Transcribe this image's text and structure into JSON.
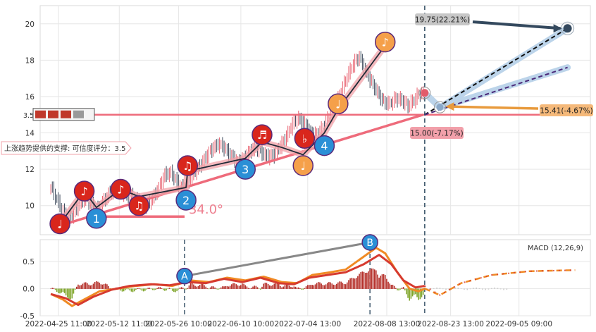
{
  "chart_data": [
    {
      "type": "candlestick",
      "panel": "price",
      "ylim": [
        8.4,
        21.0
      ],
      "yticks": [
        10,
        12,
        14,
        16,
        18,
        20
      ],
      "grid": true,
      "colors": {
        "up": "#e8606f",
        "down": "#3e4a5c",
        "support": "#f07c8a",
        "target": "#34495e",
        "note_red": "#d9261c",
        "note_orange": "#f5a04a",
        "wave_blue": "#2a8fd6"
      },
      "close_series": [
        [
          0,
          11.0
        ],
        [
          3,
          10.5
        ],
        [
          7,
          9.8
        ],
        [
          11,
          9.2
        ],
        [
          15,
          9.6
        ],
        [
          19,
          10.1
        ],
        [
          23,
          10.5
        ],
        [
          27,
          10.0
        ],
        [
          31,
          9.8
        ],
        [
          35,
          10.3
        ],
        [
          39,
          10.7
        ],
        [
          43,
          11.0
        ],
        [
          47,
          10.7
        ],
        [
          51,
          10.6
        ],
        [
          55,
          10.4
        ],
        [
          59,
          10.1
        ],
        [
          63,
          10.0
        ],
        [
          67,
          10.4
        ],
        [
          71,
          11.0
        ],
        [
          75,
          11.7
        ],
        [
          79,
          11.8
        ],
        [
          83,
          11.3
        ],
        [
          87,
          10.9
        ],
        [
          91,
          11.4
        ],
        [
          95,
          11.9
        ],
        [
          99,
          12.3
        ],
        [
          103,
          12.8
        ],
        [
          107,
          13.2
        ],
        [
          111,
          13.4
        ],
        [
          115,
          13.1
        ],
        [
          119,
          12.7
        ],
        [
          123,
          12.4
        ],
        [
          127,
          12.6
        ],
        [
          131,
          13.0
        ],
        [
          135,
          13.2
        ],
        [
          139,
          12.9
        ],
        [
          143,
          12.7
        ],
        [
          147,
          12.8
        ],
        [
          151,
          13.3
        ],
        [
          155,
          13.8
        ],
        [
          159,
          14.5
        ],
        [
          163,
          14.8
        ],
        [
          167,
          14.5
        ],
        [
          171,
          14.0
        ],
        [
          175,
          13.9
        ],
        [
          179,
          14.3
        ],
        [
          183,
          14.9
        ],
        [
          187,
          15.4
        ],
        [
          191,
          16.3
        ],
        [
          195,
          17.1
        ],
        [
          199,
          17.8
        ],
        [
          203,
          18.2
        ],
        [
          207,
          17.4
        ],
        [
          211,
          16.8
        ],
        [
          215,
          16.2
        ],
        [
          219,
          15.7
        ],
        [
          223,
          15.6
        ],
        [
          227,
          15.9
        ],
        [
          231,
          15.8
        ],
        [
          235,
          15.5
        ],
        [
          239,
          15.8
        ],
        [
          243,
          16.2
        ],
        [
          245,
          16.1
        ]
      ],
      "support_line": {
        "level": 15.0,
        "label": "3.5"
      },
      "rising_trend": [
        [
          6,
          8.9
        ],
        [
          245,
          15.0
        ]
      ],
      "targets": [
        {
          "name": "up",
          "label": "19.75(22.21%)",
          "value": 19.75
        },
        {
          "name": "mid",
          "label": "15.41(-4.67%)",
          "value": 15.41
        },
        {
          "name": "down",
          "label": "15.00(-7.17%)",
          "value": 15.0
        }
      ],
      "waves": [
        {
          "label": "1",
          "bar": 30,
          "value": 9.3
        },
        {
          "label": "2",
          "bar": 89,
          "value": 10.3
        },
        {
          "label": "3",
          "bar": 128,
          "value": 12.0
        },
        {
          "label": "4",
          "bar": 180,
          "value": 13.3
        }
      ],
      "notes": [
        {
          "glyph": "♩",
          "bar": 6,
          "value": 9.0,
          "color": "red"
        },
        {
          "glyph": "♪",
          "bar": 22,
          "value": 10.8,
          "color": "red"
        },
        {
          "glyph": "♪",
          "bar": 46,
          "value": 10.9,
          "color": "red"
        },
        {
          "glyph": "♫",
          "bar": 58,
          "value": 10.0,
          "color": "red"
        },
        {
          "glyph": "♫",
          "bar": 90,
          "value": 12.2,
          "color": "red"
        },
        {
          "glyph": "♬",
          "bar": 139,
          "value": 13.9,
          "color": "red"
        },
        {
          "glyph": "♭",
          "bar": 167,
          "value": 13.7,
          "color": "red"
        },
        {
          "glyph": "♩",
          "bar": 166,
          "value": 12.2,
          "color": "orange"
        },
        {
          "glyph": "♩",
          "bar": 189,
          "value": 15.6,
          "color": "orange"
        },
        {
          "glyph": "♪",
          "bar": 220,
          "value": 19.0,
          "color": "orange"
        }
      ],
      "angle_label": "34.0°",
      "support_tag": "上涨趋势提供的支撑: 可信度评分：3.5"
    },
    {
      "type": "macd",
      "panel": "indicator",
      "legend": "MACD (12,26,9)",
      "ylim": [
        -0.5,
        0.9
      ],
      "yticks": [
        -0.5,
        0.0,
        0.5
      ],
      "grid": true,
      "dif": [
        [
          0,
          -0.1
        ],
        [
          8,
          -0.2
        ],
        [
          14,
          -0.32
        ],
        [
          22,
          -0.2
        ],
        [
          32,
          -0.05
        ],
        [
          44,
          0.0
        ],
        [
          56,
          0.05
        ],
        [
          68,
          0.08
        ],
        [
          80,
          0.05
        ],
        [
          92,
          0.15
        ],
        [
          104,
          0.12
        ],
        [
          116,
          0.2
        ],
        [
          128,
          0.15
        ],
        [
          140,
          0.22
        ],
        [
          152,
          0.12
        ],
        [
          162,
          0.1
        ],
        [
          172,
          0.25
        ],
        [
          184,
          0.3
        ],
        [
          194,
          0.35
        ],
        [
          204,
          0.55
        ],
        [
          214,
          0.75
        ],
        [
          220,
          0.65
        ],
        [
          228,
          0.3
        ],
        [
          236,
          0.0
        ],
        [
          242,
          -0.05
        ],
        [
          246,
          0.0
        ]
      ],
      "dea": [
        [
          0,
          -0.1
        ],
        [
          10,
          -0.18
        ],
        [
          18,
          -0.3
        ],
        [
          28,
          -0.15
        ],
        [
          40,
          -0.02
        ],
        [
          52,
          0.05
        ],
        [
          66,
          0.08
        ],
        [
          78,
          0.06
        ],
        [
          90,
          0.12
        ],
        [
          102,
          0.1
        ],
        [
          114,
          0.18
        ],
        [
          126,
          0.12
        ],
        [
          138,
          0.2
        ],
        [
          150,
          0.1
        ],
        [
          160,
          0.08
        ],
        [
          170,
          0.2
        ],
        [
          182,
          0.25
        ],
        [
          194,
          0.3
        ],
        [
          206,
          0.45
        ],
        [
          216,
          0.62
        ],
        [
          224,
          0.45
        ],
        [
          232,
          0.15
        ],
        [
          240,
          0.02
        ],
        [
          246,
          0.05
        ]
      ],
      "projection": [
        [
          246,
          0.0
        ],
        [
          256,
          -0.12
        ],
        [
          270,
          0.1
        ],
        [
          290,
          0.25
        ],
        [
          315,
          0.32
        ],
        [
          345,
          0.34
        ]
      ],
      "divergence": {
        "a": {
          "label": "A",
          "bar": 88,
          "value": 0.23
        },
        "b": {
          "label": "B",
          "bar": 210,
          "value": 0.85
        }
      }
    }
  ],
  "x_labels": [
    "2022-04-25 11:00",
    "2022-05-12 11:00",
    "2022-05-26 10:00",
    "2022-06-10 10:00",
    "2022-07-04 13:00",
    "2022-08-08 13:00",
    "2022-08-23 13:00",
    "2022-09-05 09:00"
  ]
}
